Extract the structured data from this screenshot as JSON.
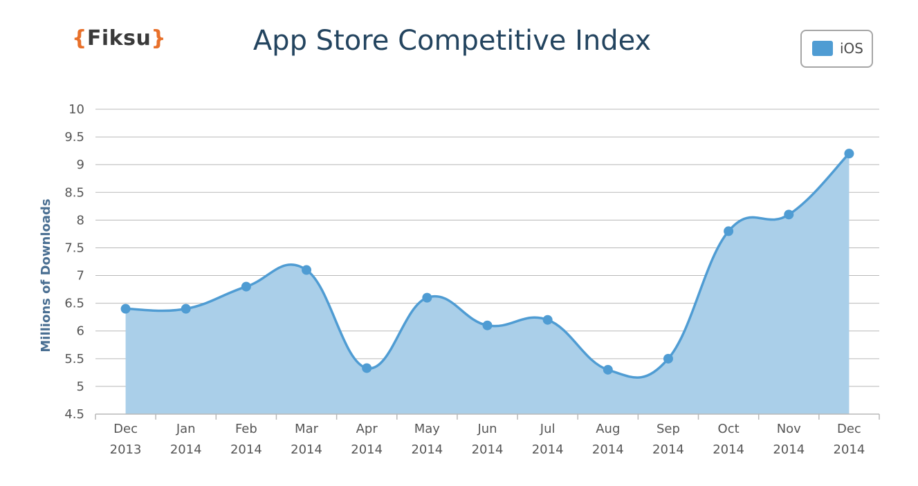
{
  "logo": {
    "open": "{",
    "word": "Fiksu",
    "close": "}"
  },
  "chart_data": {
    "type": "area",
    "title": "App Store Competitive Index",
    "ylabel": "Millions of Downloads",
    "xlabel": "",
    "categories": [
      [
        "Dec",
        "2013"
      ],
      [
        "Jan",
        "2014"
      ],
      [
        "Feb",
        "2014"
      ],
      [
        "Mar",
        "2014"
      ],
      [
        "Apr",
        "2014"
      ],
      [
        "May",
        "2014"
      ],
      [
        "Jun",
        "2014"
      ],
      [
        "Jul",
        "2014"
      ],
      [
        "Aug",
        "2014"
      ],
      [
        "Sep",
        "2014"
      ],
      [
        "Oct",
        "2014"
      ],
      [
        "Nov",
        "2014"
      ],
      [
        "Dec",
        "2014"
      ]
    ],
    "series": [
      {
        "name": "iOS",
        "values": [
          6.4,
          6.4,
          6.8,
          7.1,
          5.33,
          6.6,
          6.1,
          6.2,
          5.3,
          5.5,
          7.8,
          8.1,
          9.2
        ]
      }
    ],
    "y_ticks": [
      "4.5",
      "5",
      "5.5",
      "6",
      "6.5",
      "7",
      "7.5",
      "8",
      "8.5",
      "9",
      "9.5",
      "10"
    ],
    "ylim": [
      4.5,
      10
    ],
    "grid": true,
    "legend_position": "top-right",
    "colors": {
      "line": "#4f9cd3",
      "fill": "#aacfe9",
      "grid": "#b8b8b8",
      "title": "#23445f"
    }
  }
}
